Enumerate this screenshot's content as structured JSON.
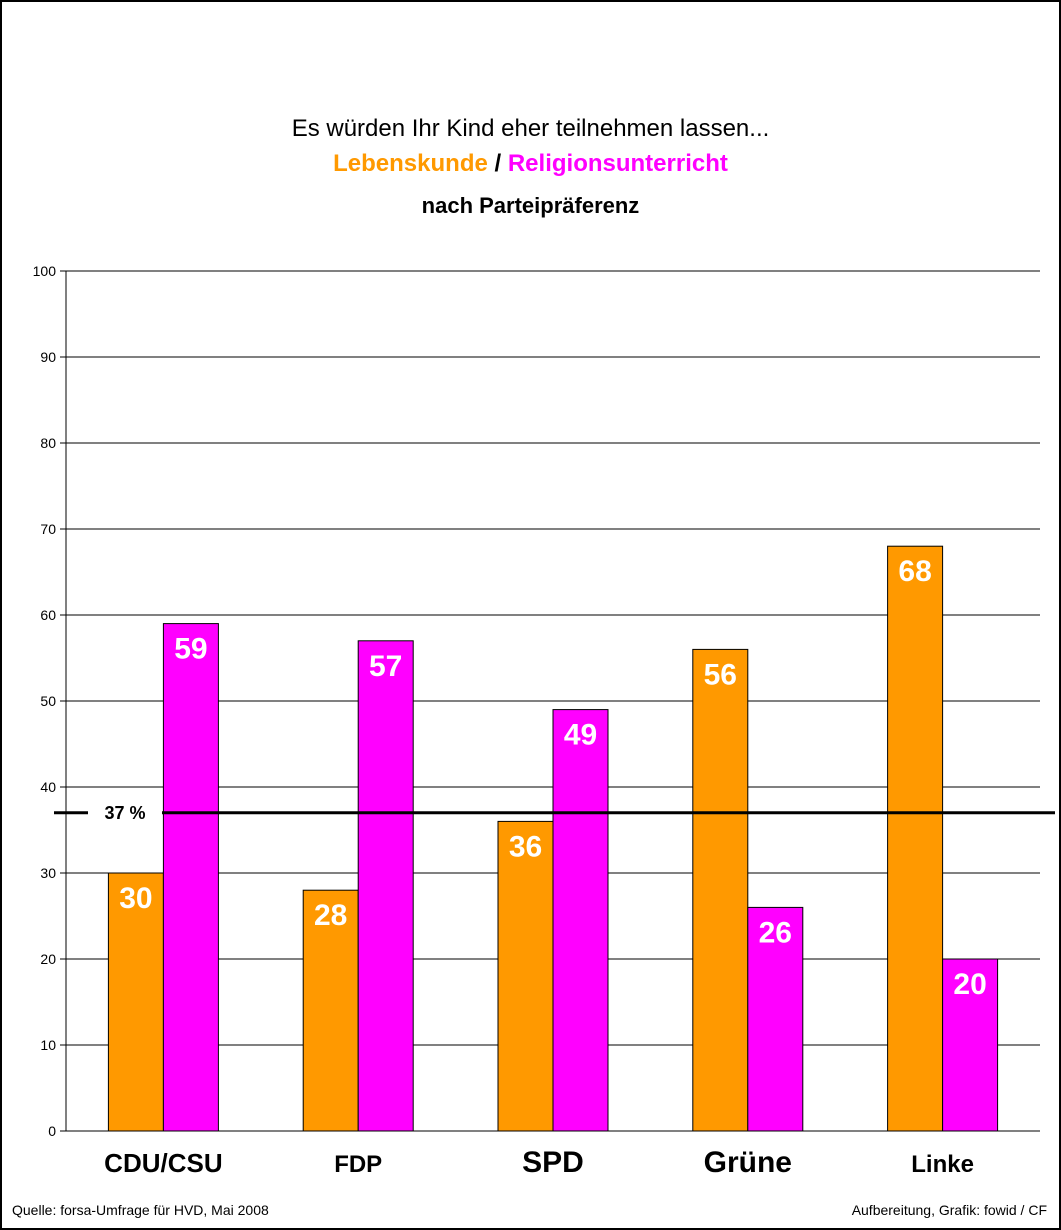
{
  "title": {
    "line1": "Es würden Ihr Kind eher teilnehmen lassen...",
    "series_a": "Lebenskunde",
    "separator": " / ",
    "series_b": "Religionsunterricht",
    "subtitle": "nach Parteipräferenz"
  },
  "footer": {
    "source": "Quelle: forsa-Umfrage für HVD, Mai 2008",
    "credit": "Aufbereitung, Grafik: fowid / CF"
  },
  "colors": {
    "lebenskunde": "#FF9900",
    "religionsunterricht": "#FF00FF"
  },
  "chart_data": {
    "type": "bar",
    "categories": [
      "CDU/CSU",
      "FDP",
      "SPD",
      "Grüne",
      "Linke"
    ],
    "series": [
      {
        "name": "Lebenskunde",
        "values": [
          30,
          28,
          36,
          56,
          68
        ]
      },
      {
        "name": "Religionsunterricht",
        "values": [
          59,
          57,
          49,
          26,
          20
        ]
      }
    ],
    "yticks": [
      0,
      10,
      20,
      30,
      40,
      50,
      60,
      70,
      80,
      90,
      100
    ],
    "ylim": [
      0,
      100
    ],
    "grid": true,
    "reference_line": {
      "value": 37,
      "label": "37 %"
    }
  }
}
